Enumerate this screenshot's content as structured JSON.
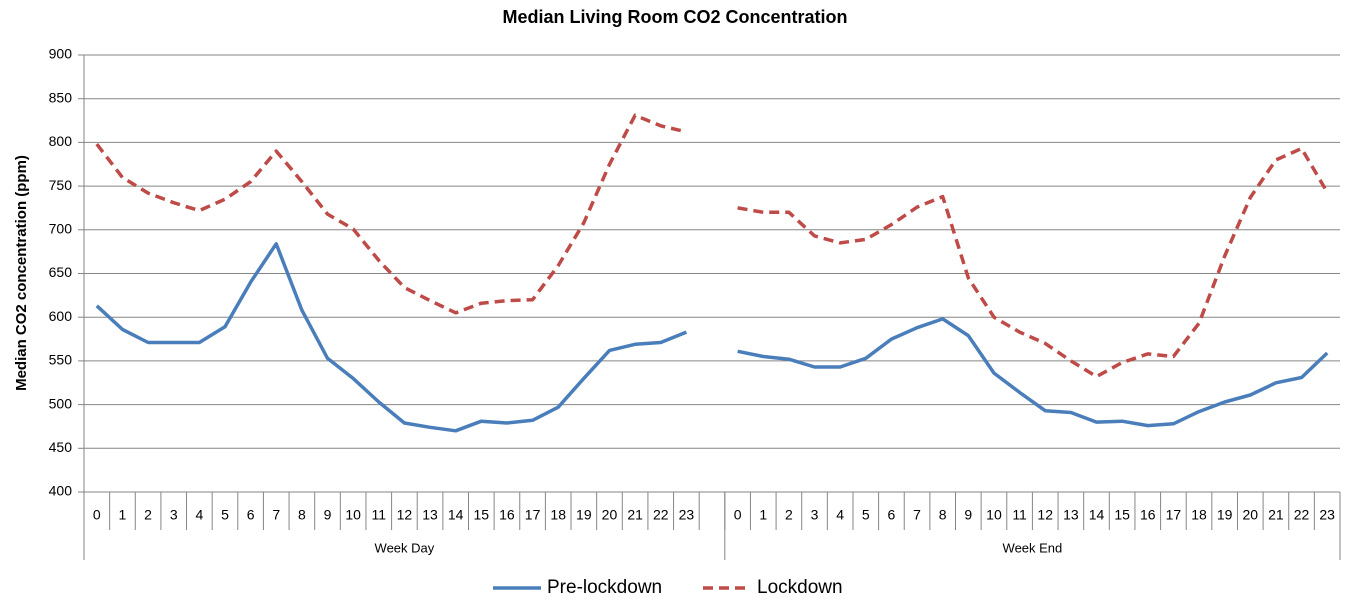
{
  "chart_data": {
    "type": "line",
    "title": "Median Living Room CO2 Concentration",
    "y_label": "Median CO2 concentration (ppm)",
    "categories": [
      "0",
      "1",
      "2",
      "3",
      "4",
      "5",
      "6",
      "7",
      "8",
      "9",
      "10",
      "11",
      "12",
      "13",
      "14",
      "15",
      "16",
      "17",
      "18",
      "19",
      "20",
      "21",
      "22",
      "23",
      null,
      "0",
      "1",
      "2",
      "3",
      "4",
      "5",
      "6",
      "7",
      "8",
      "9",
      "10",
      "11",
      "12",
      "13",
      "14",
      "15",
      "16",
      "17",
      "18",
      "19",
      "20",
      "21",
      "22",
      "23"
    ],
    "groups": [
      "Week Day",
      "Week End"
    ],
    "series": [
      {
        "name": "Pre-lockdown",
        "color": "#4a7ebb",
        "style": "solid",
        "values": [
          613,
          586,
          571,
          571,
          571,
          589,
          640,
          684,
          608,
          553,
          530,
          503,
          479,
          474,
          470,
          481,
          479,
          482,
          497,
          530,
          562,
          569,
          571,
          583,
          null,
          561,
          555,
          552,
          543,
          543,
          553,
          575,
          588,
          598,
          579,
          536,
          514,
          493,
          491,
          480,
          481,
          476,
          478,
          492,
          503,
          511,
          525,
          531,
          559
        ]
      },
      {
        "name": "Lockdown",
        "color": "#be4b48",
        "style": "dashed",
        "values": [
          798,
          760,
          742,
          731,
          722,
          735,
          755,
          790,
          755,
          718,
          701,
          665,
          634,
          619,
          605,
          616,
          619,
          620,
          659,
          708,
          775,
          831,
          819,
          812,
          null,
          725,
          720,
          720,
          693,
          685,
          689,
          706,
          726,
          738,
          645,
          600,
          583,
          570,
          550,
          532,
          548,
          558,
          555,
          593,
          670,
          737,
          780,
          793,
          743
        ]
      }
    ],
    "ylim": [
      400,
      900
    ],
    "yticks": [
      400,
      450,
      500,
      550,
      600,
      650,
      700,
      750,
      800,
      850,
      900
    ],
    "grid": true,
    "legend": "bottom"
  }
}
